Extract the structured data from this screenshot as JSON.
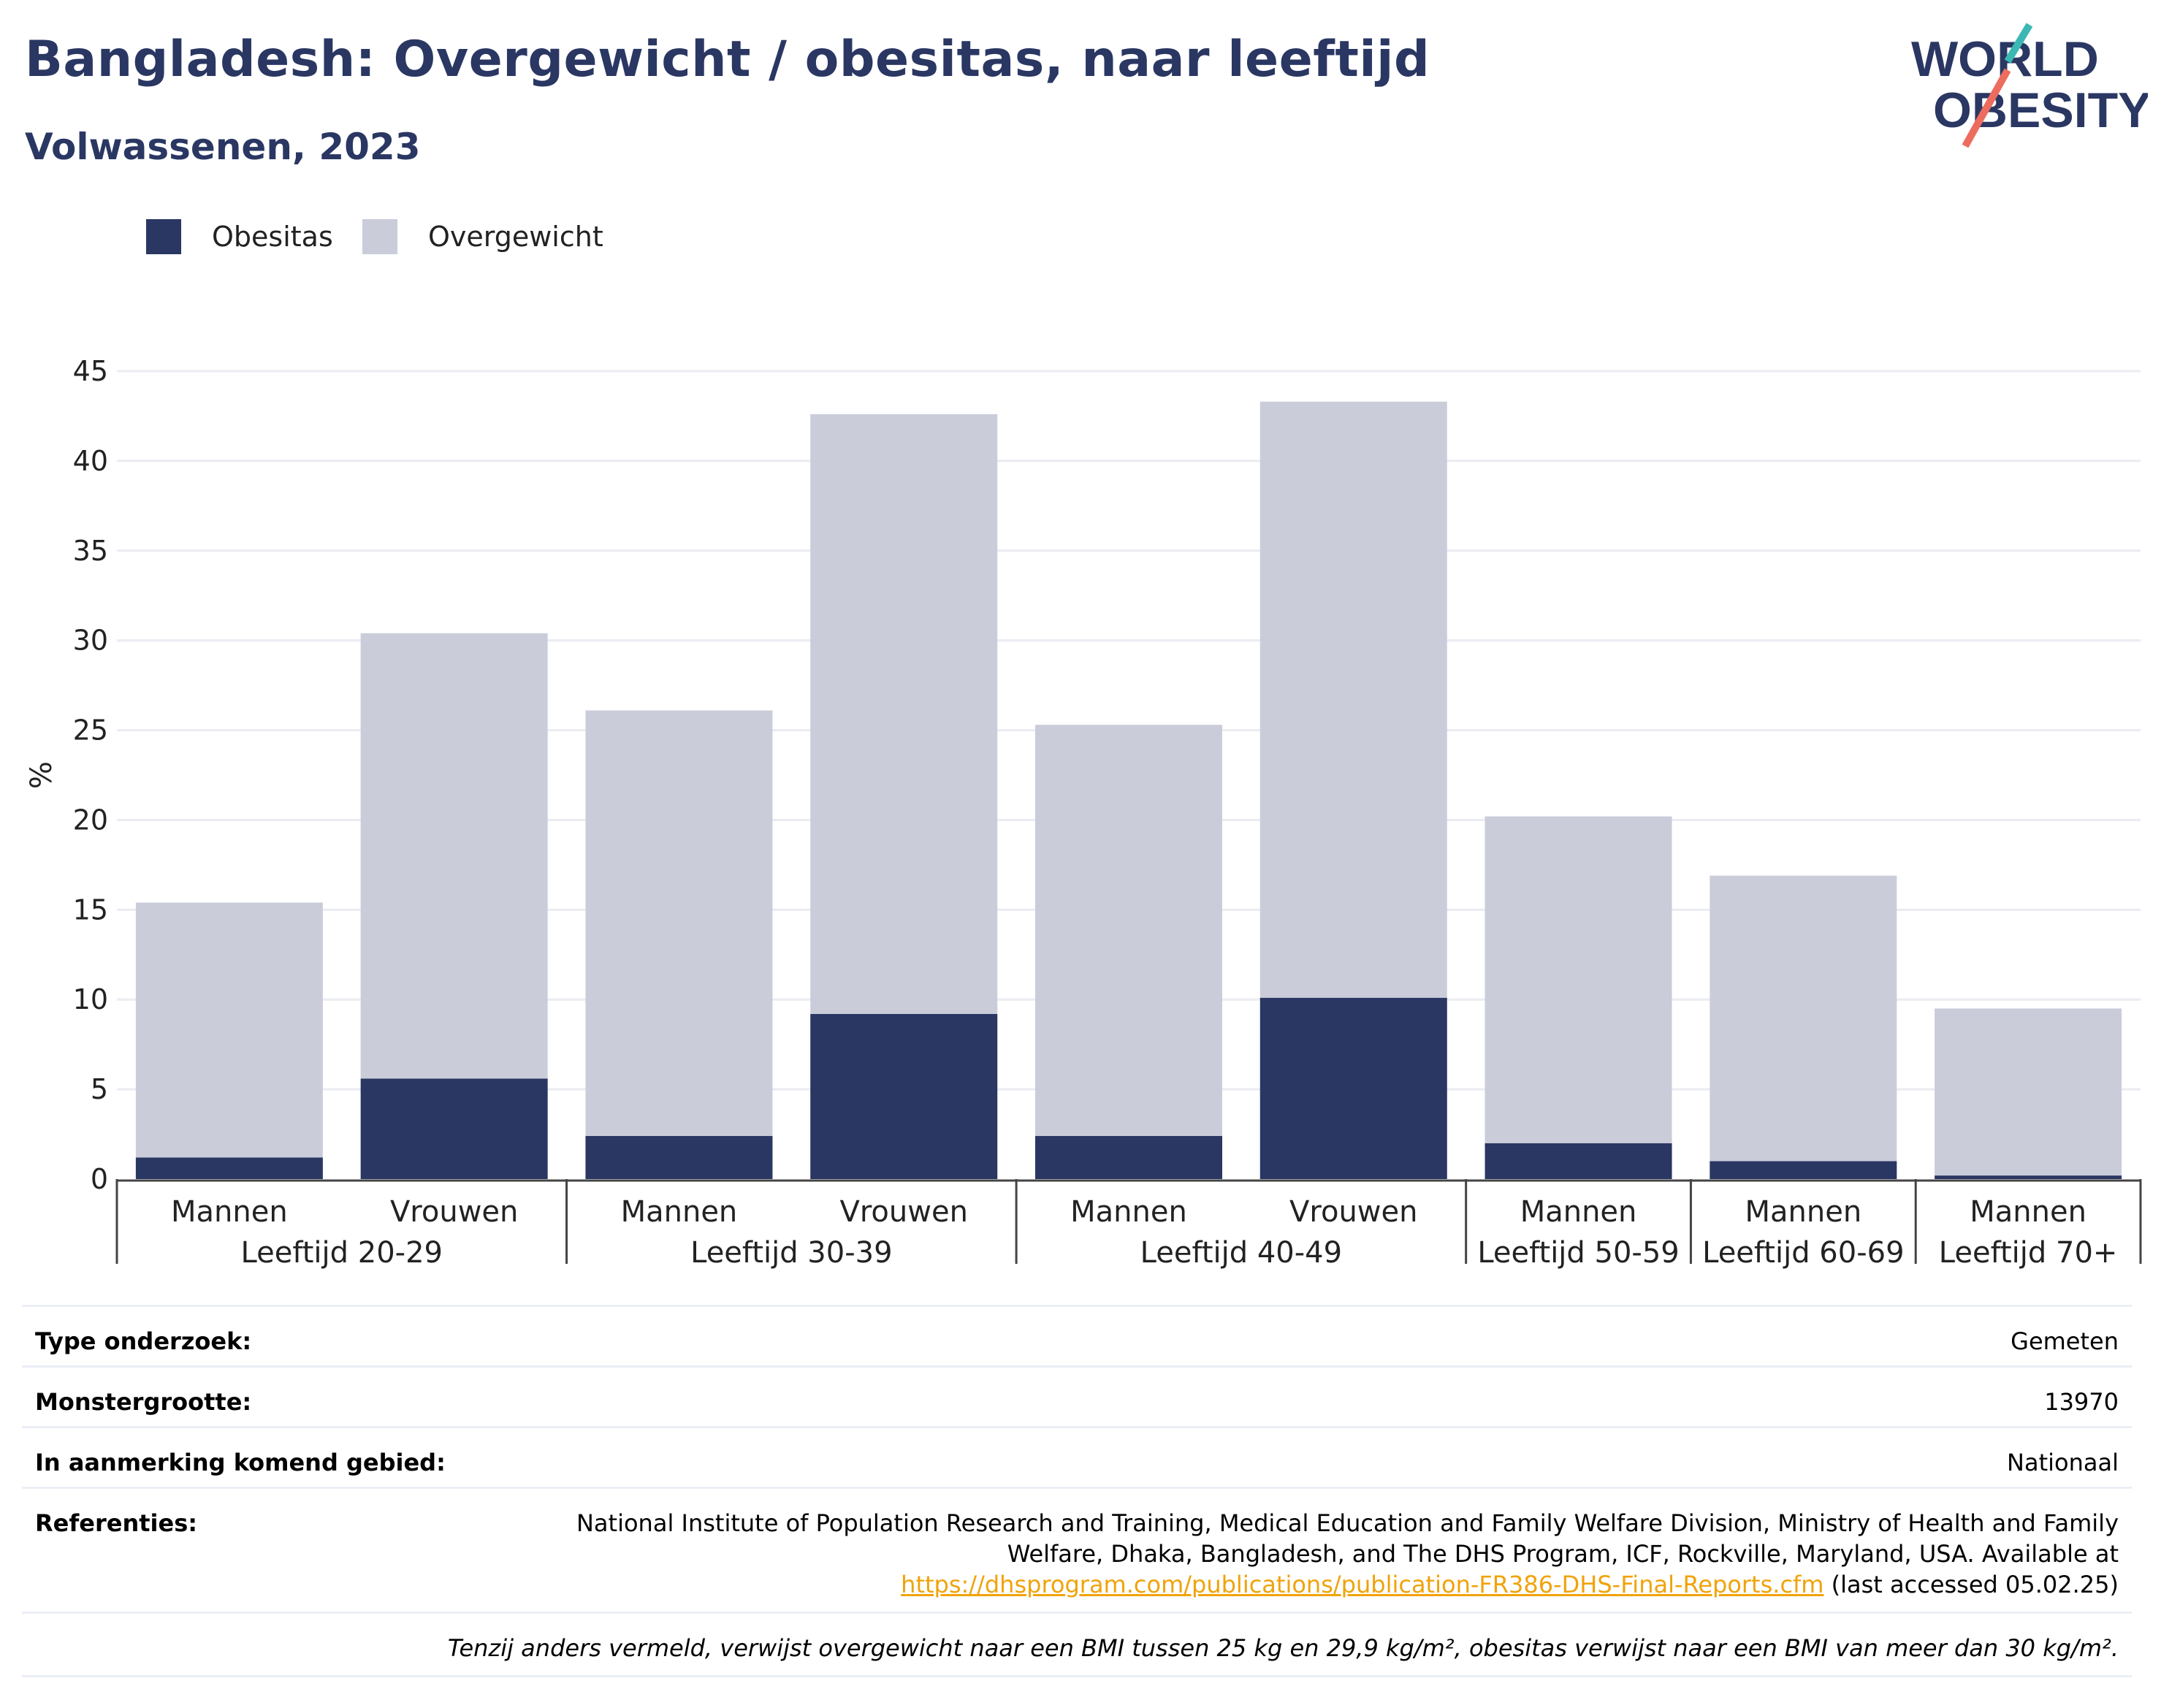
{
  "header": {
    "title": "Bangladesh: Overgewicht / obesitas, naar leeftijd",
    "subtitle": "Volwassenen, 2023",
    "logo_line1": "WORLD",
    "logo_line2": "OBESITY"
  },
  "legend": [
    {
      "label": "Obesitas",
      "color": "#2a3763"
    },
    {
      "label": "Overgewicht",
      "color": "#cacdd9"
    }
  ],
  "chart_data": {
    "type": "bar",
    "stacked": true,
    "ylabel": "%",
    "ylim": [
      0,
      45
    ],
    "yticks": [
      0,
      5,
      10,
      15,
      20,
      25,
      30,
      35,
      40,
      45
    ],
    "grid": true,
    "legend_position": "top-left",
    "groups": [
      {
        "label": "Leeftijd 20-29",
        "categories": [
          "Mannen",
          "Vrouwen"
        ]
      },
      {
        "label": "Leeftijd 30-39",
        "categories": [
          "Mannen",
          "Vrouwen"
        ]
      },
      {
        "label": "Leeftijd 40-49",
        "categories": [
          "Mannen",
          "Vrouwen"
        ]
      },
      {
        "label": "Leeftijd 50-59",
        "categories": [
          "Mannen"
        ]
      },
      {
        "label": "Leeftijd 60-69",
        "categories": [
          "Mannen"
        ]
      },
      {
        "label": "Leeftijd 70+",
        "categories": [
          "Mannen"
        ]
      }
    ],
    "series": [
      {
        "name": "Obesitas",
        "color": "#2a3763",
        "values": [
          1.2,
          5.6,
          2.4,
          9.2,
          2.4,
          10.1,
          2.0,
          1.0,
          0.2
        ]
      },
      {
        "name": "Overgewicht",
        "color": "#cacdd9",
        "values": [
          14.2,
          24.8,
          23.7,
          33.4,
          22.9,
          33.2,
          18.2,
          15.9,
          9.3
        ]
      }
    ]
  },
  "meta": {
    "survey_type_label": "Type onderzoek:",
    "survey_type_value": "Gemeten",
    "sample_size_label": "Monstergrootte:",
    "sample_size_value": "13970",
    "area_label": "In aanmerking komend gebied:",
    "area_value": "Nationaal",
    "references_label": "Referenties:",
    "references_text_1": "National Institute of Population Research and Training, Medical Education and Family Welfare Division, Ministry of Health and Family Welfare, Dhaka, Bangladesh, and The DHS Program, ICF, Rockville, Maryland, USA. Available at",
    "references_link": "https://dhsprogram.com/publications/publication-FR386-DHS-Final-Reports.cfm",
    "references_text_2": " (last accessed 05.02.25)",
    "footnote": "Tenzij anders vermeld, verwijst overgewicht naar een BMI tussen 25 kg en 29,9 kg/m², obesitas verwijst naar een BMI van meer dan 30 kg/m²."
  }
}
